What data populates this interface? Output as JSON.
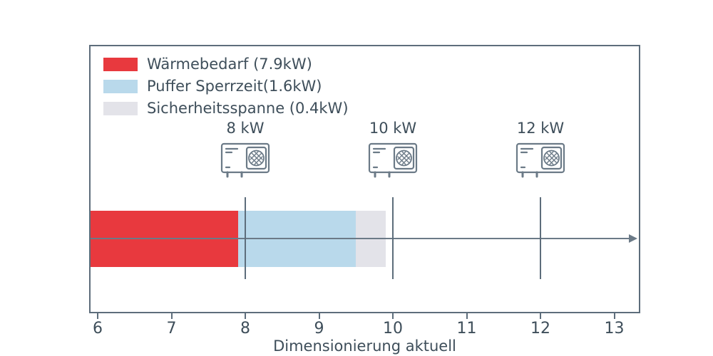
{
  "chart_data": {
    "type": "bar",
    "orientation": "horizontal",
    "title": "",
    "xlabel": "Dimensionierung aktuell",
    "xlim": [
      5.88,
      13.37
    ],
    "x_ticks": [
      6,
      7,
      8,
      9,
      10,
      11,
      12,
      13
    ],
    "grid": false,
    "legend_position": "upper-left-inside",
    "segments": [
      {
        "name": "Wärmebedarf (7.9kW)",
        "value_kw": 7.9,
        "start": 0,
        "end": 7.9,
        "color": "#e8393e"
      },
      {
        "name": "Puffer Sperrzeit(1.6kW)",
        "value_kw": 1.6,
        "start": 7.9,
        "end": 9.5,
        "color": "#b9d9eb"
      },
      {
        "name": "Sicherheitsspanne (0.4kW)",
        "value_kw": 0.4,
        "start": 9.5,
        "end": 9.9,
        "color": "#e3e3e9"
      }
    ],
    "markers": [
      {
        "value": 8,
        "label": "8 kW",
        "icon": "heat-pump-icon"
      },
      {
        "value": 10,
        "label": "10 kW",
        "icon": "heat-pump-icon"
      },
      {
        "value": 12,
        "label": "12 kW",
        "icon": "heat-pump-icon"
      }
    ]
  },
  "colors": {
    "axis": "#5d6d7b",
    "arrow": "#6b7a87",
    "text": "#3e4e5a",
    "icon_stroke": "#6b7a87",
    "background": "#ffffff"
  }
}
